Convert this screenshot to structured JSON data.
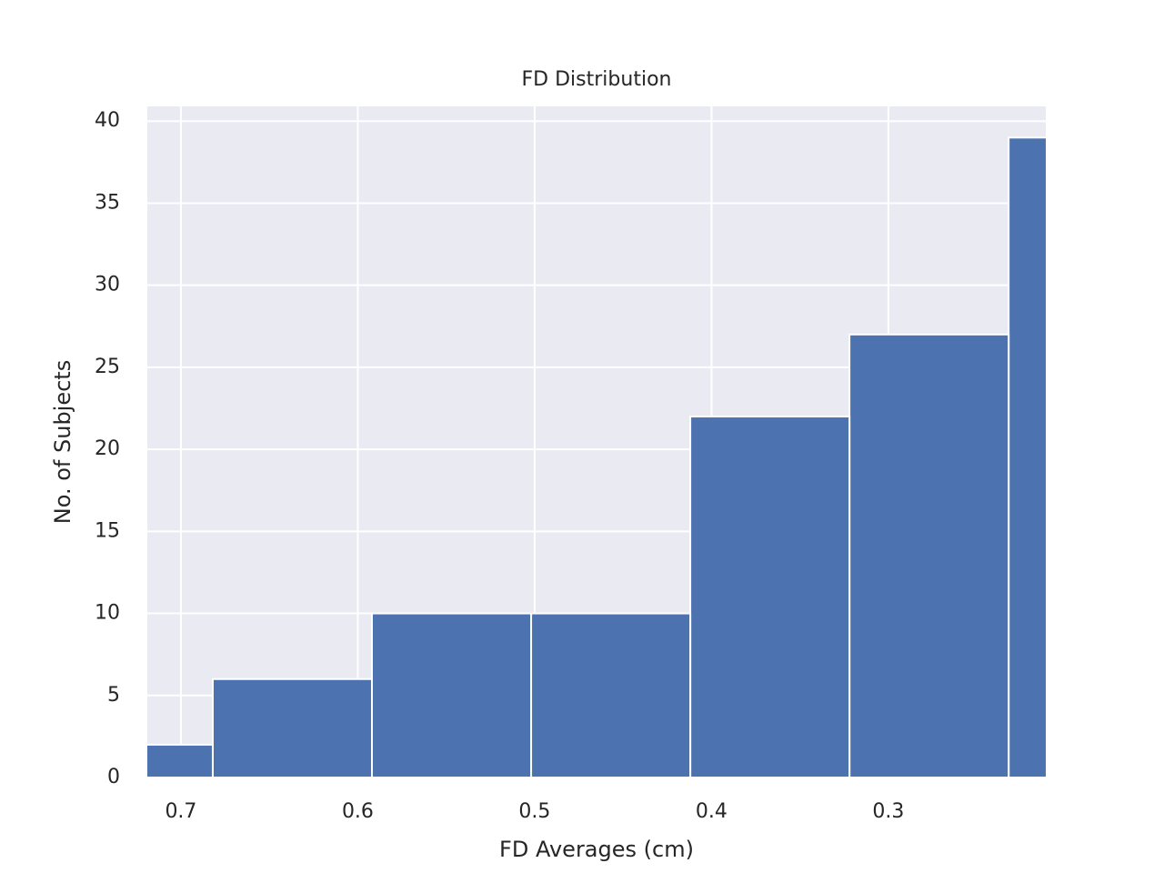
{
  "chart_data": {
    "type": "histogram",
    "title": "FD Distribution",
    "x_label": "FD Averages (cm)",
    "y_label": "No. of Subjects",
    "bins": [
      0.142,
      0.232,
      0.322,
      0.412,
      0.502,
      0.592,
      0.682,
      0.772
    ],
    "counts": [
      39,
      27,
      22,
      10,
      10,
      6,
      2
    ],
    "color": "#4c72b0",
    "xlim": [
      0.719,
      0.211
    ],
    "xticks": [
      0.7,
      0.6,
      0.5,
      0.4,
      0.3
    ],
    "ylim": [
      0,
      40.9
    ],
    "yticks": [
      0,
      5,
      10,
      15,
      20,
      25,
      30,
      35,
      40
    ],
    "grid": true
  }
}
